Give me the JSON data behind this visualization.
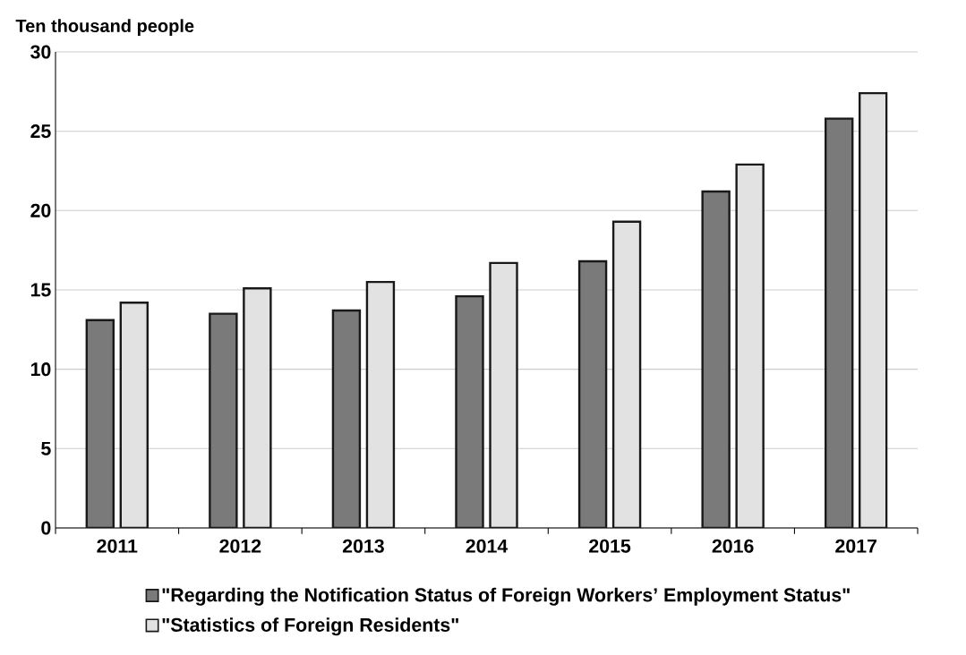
{
  "chart_data": {
    "type": "bar",
    "ylabel": "Ten thousand people",
    "categories": [
      "2011",
      "2012",
      "2013",
      "2014",
      "2015",
      "2016",
      "2017"
    ],
    "series": [
      {
        "name": "\"Regarding the Notification Status of Foreign Workers’ Employment Status\"",
        "color": "#7a7a7a",
        "values": [
          13.1,
          13.5,
          13.7,
          14.6,
          16.8,
          21.2,
          25.8
        ]
      },
      {
        "name": "\"Statistics of Foreign Residents\"",
        "color": "#e2e2e2",
        "values": [
          14.2,
          15.1,
          15.5,
          16.7,
          19.3,
          22.9,
          27.4
        ]
      }
    ],
    "ylim": [
      0,
      30
    ],
    "yticks": [
      0,
      5,
      10,
      15,
      20,
      25,
      30
    ],
    "grid": "y",
    "legend": "bottom"
  }
}
